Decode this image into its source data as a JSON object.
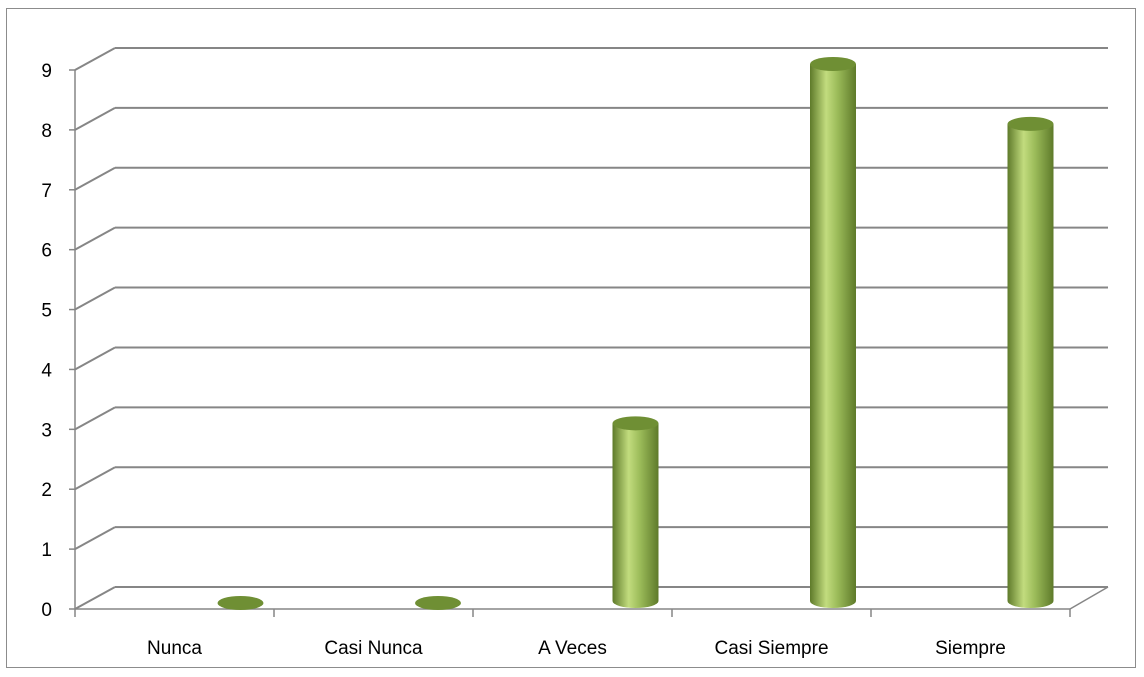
{
  "chart_data": {
    "type": "bar",
    "style": "3d-cylinder",
    "categories": [
      "Nunca",
      "Casi Nunca",
      "A Veces",
      "Casi Siempre",
      "Siempre"
    ],
    "values": [
      0,
      0,
      3,
      9,
      8
    ],
    "title": "",
    "xlabel": "",
    "ylabel": "",
    "ylim": [
      0,
      9
    ],
    "yticks": [
      0,
      1,
      2,
      3,
      4,
      5,
      6,
      7,
      8,
      9
    ],
    "grid": true,
    "legend": "none",
    "colors": {
      "bar_light": "#c2dc7e",
      "bar_mid": "#9bbb59",
      "bar_dark": "#5e7a2a",
      "bar_top": "#6f8f34",
      "grid": "#868686"
    }
  }
}
